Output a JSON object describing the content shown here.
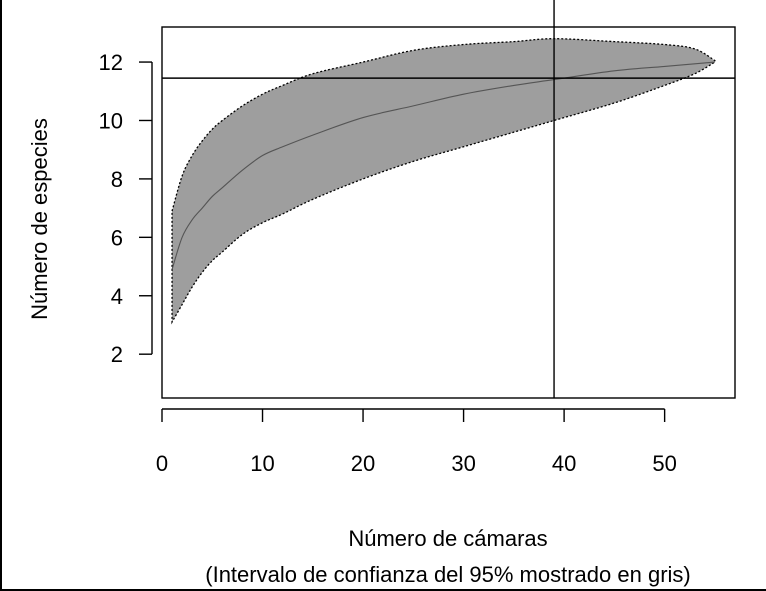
{
  "chart_data": {
    "type": "area",
    "title": "",
    "xlabel": "Número de cámaras",
    "xlabel_note": "(Intervalo de confianza del 95% mostrado en gris)",
    "ylabel": "Número de especies",
    "xlim": [
      0,
      57
    ],
    "ylim": [
      0.5,
      13.2
    ],
    "x_ticks": [
      0,
      10,
      20,
      30,
      40,
      50
    ],
    "y_ticks": [
      2,
      4,
      6,
      8,
      10,
      12
    ],
    "x_tick_labels": [
      "0",
      "10",
      "20",
      "30",
      "40",
      "50"
    ],
    "y_tick_labels": [
      "2",
      "4",
      "6",
      "8",
      "10",
      "12"
    ],
    "series": [
      {
        "role": "mean",
        "x": [
          1,
          2,
          3,
          4,
          5,
          6,
          8,
          10,
          12,
          15,
          20,
          25,
          30,
          35,
          39,
          45,
          50,
          55
        ],
        "values": [
          4.9,
          6.0,
          6.6,
          7.0,
          7.4,
          7.7,
          8.3,
          8.8,
          9.1,
          9.5,
          10.1,
          10.5,
          10.9,
          11.2,
          11.4,
          11.7,
          11.85,
          12.0
        ]
      },
      {
        "role": "ci_upper",
        "x": [
          1,
          2,
          3,
          4,
          5,
          6,
          8,
          10,
          12,
          15,
          20,
          25,
          30,
          35,
          39,
          45,
          50,
          53,
          55
        ],
        "values": [
          6.9,
          8.1,
          8.8,
          9.3,
          9.7,
          10.0,
          10.5,
          10.9,
          11.2,
          11.6,
          12.0,
          12.4,
          12.6,
          12.7,
          12.8,
          12.7,
          12.6,
          12.45,
          12.05
        ]
      },
      {
        "role": "ci_lower",
        "x": [
          1,
          2,
          3,
          4,
          5,
          6,
          8,
          10,
          12,
          15,
          20,
          25,
          30,
          35,
          39,
          45,
          50,
          53,
          55
        ],
        "values": [
          3.1,
          3.7,
          4.3,
          4.8,
          5.2,
          5.5,
          6.1,
          6.5,
          6.8,
          7.3,
          8.0,
          8.6,
          9.1,
          9.6,
          10.0,
          10.6,
          11.2,
          11.6,
          12.0
        ]
      }
    ],
    "reference_lines": {
      "vertical_x": 39,
      "horizontal_y": 11.45
    },
    "colors": {
      "ci_fill": "#9e9e9e",
      "mean_line": "#555555",
      "axes": "#000000"
    },
    "grid": false,
    "legend": "none"
  }
}
